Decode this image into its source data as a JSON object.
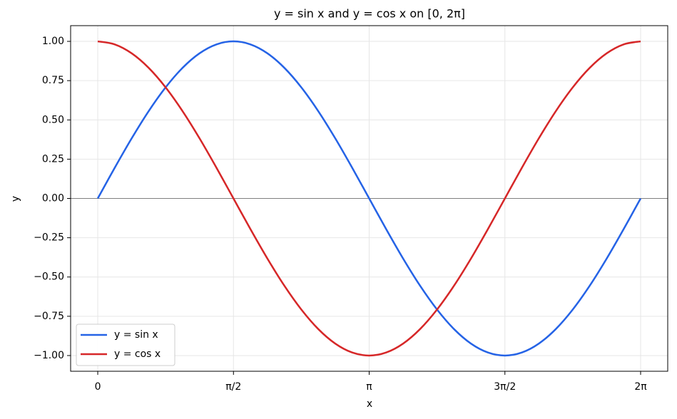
{
  "chart_data": {
    "type": "line",
    "title": "y = sin x and y = cos x on [0, 2π]",
    "x_label": "x",
    "y_label": "y",
    "x": [
      0,
      0.1963,
      0.3927,
      0.589,
      0.7854,
      0.9817,
      1.1781,
      1.3744,
      1.5708,
      1.7671,
      1.9635,
      2.1598,
      2.3562,
      2.5525,
      2.7489,
      2.9452,
      3.1416,
      3.3379,
      3.5343,
      3.7306,
      3.927,
      4.1233,
      4.3197,
      4.516,
      4.7124,
      4.9087,
      5.1051,
      5.3014,
      5.4978,
      5.6941,
      5.8905,
      6.0868,
      6.2832
    ],
    "series": [
      {
        "name": "y = sin x",
        "color": "#2563e6",
        "values": [
          0,
          0.1951,
          0.3827,
          0.5556,
          0.7071,
          0.8315,
          0.9239,
          0.9808,
          1,
          0.9808,
          0.9239,
          0.8315,
          0.7071,
          0.5556,
          0.3827,
          0.1951,
          0,
          -0.1951,
          -0.3827,
          -0.5556,
          -0.7071,
          -0.8315,
          -0.9239,
          -0.9808,
          -1,
          -0.9808,
          -0.9239,
          -0.8315,
          -0.7071,
          -0.5556,
          -0.3827,
          -0.1951,
          0
        ]
      },
      {
        "name": "y = cos x",
        "color": "#d62728",
        "values": [
          1,
          0.9808,
          0.9239,
          0.8315,
          0.7071,
          0.5556,
          0.3827,
          0.1951,
          0,
          -0.1951,
          -0.3827,
          -0.5556,
          -0.7071,
          -0.8315,
          -0.9239,
          -0.9808,
          -1,
          -0.9808,
          -0.9239,
          -0.8315,
          -0.7071,
          -0.5556,
          -0.3827,
          -0.1951,
          0,
          0.1951,
          0.3827,
          0.5556,
          0.7071,
          0.8315,
          0.9239,
          0.9808,
          1
        ]
      }
    ],
    "xlim": [
      -0.314,
      6.597
    ],
    "ylim": [
      -1.1,
      1.1
    ],
    "xticks": [
      0,
      {
        "value": 1.5708,
        "label": "π/2"
      },
      {
        "value": 3.1416,
        "label": "π"
      },
      {
        "value": 4.7124,
        "label": "3π/2"
      },
      {
        "value": 6.2832,
        "label": "2π"
      }
    ],
    "yticks": [
      {
        "value": -1,
        "label": "−1.00"
      },
      {
        "value": -0.75,
        "label": "−0.75"
      },
      {
        "value": -0.5,
        "label": "−0.50"
      },
      {
        "value": -0.25,
        "label": "−0.25"
      },
      {
        "value": 0,
        "label": "0.00"
      },
      {
        "value": 0.25,
        "label": "0.25"
      },
      {
        "value": 0.5,
        "label": "0.50"
      },
      {
        "value": 0.75,
        "label": "0.75"
      },
      {
        "value": 1,
        "label": "1.00"
      }
    ],
    "axhline": 0,
    "grid": true,
    "legend": "lower left"
  }
}
